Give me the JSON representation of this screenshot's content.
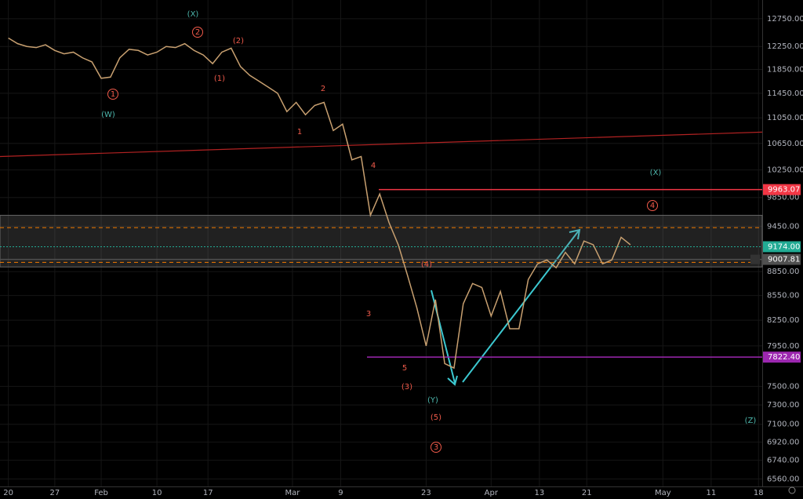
{
  "chart_data": {
    "type": "line",
    "log_scale": true,
    "color": "#c8a070",
    "x": [
      0,
      1,
      2,
      3,
      4,
      5,
      6,
      7,
      8,
      9,
      10,
      11,
      12,
      13,
      14,
      15,
      16,
      17,
      18,
      19,
      20,
      21,
      22,
      23,
      24,
      25,
      26,
      27,
      28,
      29,
      30,
      31,
      32,
      33,
      34,
      35,
      36,
      37,
      38,
      39,
      40,
      41,
      42,
      43,
      44,
      45,
      46,
      47,
      48,
      49,
      50,
      51,
      52,
      53,
      54,
      55,
      56,
      57,
      58,
      59,
      60,
      61,
      62,
      63,
      64,
      65,
      66,
      67
    ],
    "values": [
      12400,
      12300,
      12250,
      12230,
      12280,
      12180,
      12120,
      12150,
      12050,
      11980,
      11700,
      11720,
      12050,
      12200,
      12180,
      12100,
      12150,
      12250,
      12230,
      12300,
      12180,
      12100,
      11950,
      12150,
      12220,
      11900,
      11750,
      11650,
      11550,
      11450,
      11150,
      11300,
      11100,
      11250,
      11300,
      10850,
      10950,
      10400,
      10450,
      9600,
      9900,
      9500,
      9200,
      8800,
      8400,
      7950,
      8500,
      7750,
      7700,
      8450,
      8700,
      8650,
      8300,
      8600,
      8150,
      8150,
      8750,
      8950,
      9000,
      8900,
      9100,
      8950,
      9250,
      9200,
      8950,
      9000,
      9300,
      9200
    ],
    "xlim": [
      -0.9,
      81.2
    ],
    "xticks": [
      {
        "value": 0,
        "label": "20"
      },
      {
        "value": 5,
        "label": "27"
      },
      {
        "value": 10,
        "label": "Feb"
      },
      {
        "value": 16,
        "label": "10"
      },
      {
        "value": 21.5,
        "label": "17"
      },
      {
        "value": 30.6,
        "label": "Mar"
      },
      {
        "value": 35.8,
        "label": "9"
      },
      {
        "value": 45,
        "label": "23"
      },
      {
        "value": 52,
        "label": "Apr"
      },
      {
        "value": 57.2,
        "label": "13"
      },
      {
        "value": 62.3,
        "label": "21"
      },
      {
        "value": 70.5,
        "label": "May"
      },
      {
        "value": 75.7,
        "label": "11"
      },
      {
        "value": 80.8,
        "label": "18"
      }
    ],
    "ylim": [
      6490,
      13100
    ],
    "yticks": [
      {
        "value": 12750,
        "label": "12750.00"
      },
      {
        "value": 12250,
        "label": "12250.00"
      },
      {
        "value": 11850,
        "label": "11850.00"
      },
      {
        "value": 11450,
        "label": "11450.00"
      },
      {
        "value": 11050,
        "label": "11050.00"
      },
      {
        "value": 10650,
        "label": "10650.00"
      },
      {
        "value": 10250,
        "label": "10250.00"
      },
      {
        "value": 9850,
        "label": "9850.00"
      },
      {
        "value": 9450,
        "label": "9450.00"
      },
      {
        "value": 8850,
        "label": "8850.00"
      },
      {
        "value": 8550,
        "label": "8550.00"
      },
      {
        "value": 8250,
        "label": "8250.00"
      },
      {
        "value": 7950,
        "label": "7950.00"
      },
      {
        "value": 7500,
        "label": "7500.00"
      },
      {
        "value": 7300,
        "label": "7300.00"
      },
      {
        "value": 7100,
        "label": "7100.00"
      },
      {
        "value": 6920,
        "label": "6920.00"
      },
      {
        "value": 6740,
        "label": "6740.00"
      },
      {
        "value": 6560,
        "label": "6560.00"
      }
    ],
    "grid": true,
    "price_lines": [
      {
        "value": 9963.07,
        "color": "#f23645"
      },
      {
        "value": 9174.0,
        "label": "9174.00",
        "color": "#22ab94"
      },
      {
        "value": 9007.81,
        "color": "#505050"
      },
      {
        "value": 7822.4,
        "label": "7822.40",
        "color": "#9c27b0"
      }
    ],
    "zone": [
      8910,
      9600
    ],
    "dashed_levels": [
      9430,
      8970
    ],
    "trendline": [
      10450,
      10825
    ],
    "annotations": [
      {
        "text": "(X)",
        "color": "#4db6ac"
      },
      {
        "text": "2",
        "color": "#f05a4a",
        "circled": true
      },
      {
        "text": "(2)",
        "color": "#f05a4a"
      },
      {
        "text": "(1)",
        "color": "#f05a4a"
      },
      {
        "text": "1",
        "color": "#f05a4a",
        "circled": true
      },
      {
        "text": "(W)",
        "color": "#4db6ac"
      },
      {
        "text": "2",
        "color": "#f05a4a"
      },
      {
        "text": "1",
        "color": "#f05a4a"
      },
      {
        "text": "4",
        "color": "#f05a4a"
      },
      {
        "text": "3",
        "color": "#f05a4a"
      },
      {
        "text": "5",
        "color": "#f05a4a"
      },
      {
        "text": "(3)",
        "color": "#f05a4a"
      },
      {
        "text": "(Y)",
        "color": "#4db6ac"
      },
      {
        "text": "(5)",
        "color": "#f05a4a"
      },
      {
        "text": "3",
        "color": "#f05a4a",
        "circled": true
      },
      {
        "text": "(4)",
        "color": "#f05a4a"
      },
      {
        "text": "(X)",
        "color": "#4db6ac"
      },
      {
        "text": "4",
        "color": "#f05a4a",
        "circled": true
      },
      {
        "text": "(Z)",
        "color": "#4db6ac"
      }
    ]
  }
}
